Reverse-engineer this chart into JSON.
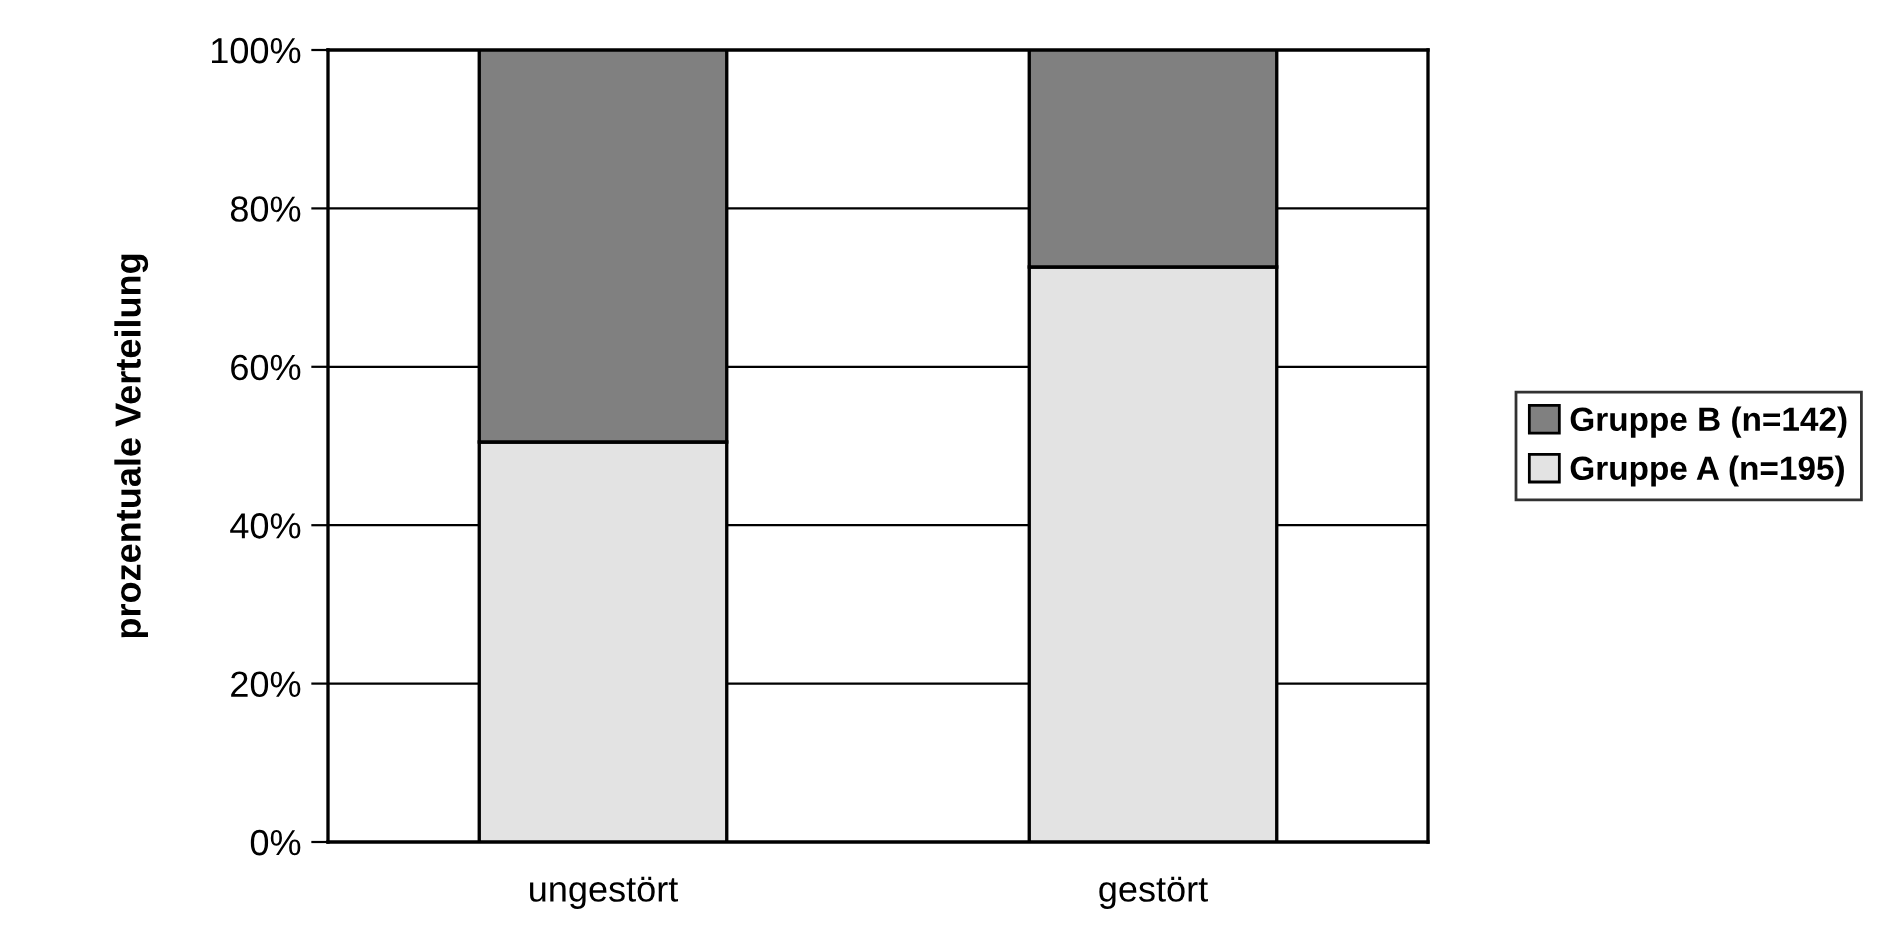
{
  "chart_data": {
    "type": "bar",
    "stacked": true,
    "ylabel": "prozentuale Verteilung",
    "categories": [
      "ungestört",
      "gestört"
    ],
    "series": [
      {
        "name": "Gruppe A (n=195)",
        "color": "#e3e3e3",
        "values": [
          50.5,
          72.6
        ]
      },
      {
        "name": "Gruppe B (n=142)",
        "color": "#808080",
        "values": [
          49.5,
          27.4
        ]
      }
    ],
    "ylim": [
      0,
      100
    ],
    "yticks": [
      {
        "value": 0,
        "label": "0%"
      },
      {
        "value": 20,
        "label": "20%"
      },
      {
        "value": 40,
        "label": "40%"
      },
      {
        "value": 60,
        "label": "60%"
      },
      {
        "value": 80,
        "label": "80%"
      },
      {
        "value": 100,
        "label": "100%"
      }
    ],
    "grid": "y",
    "legend": "right"
  }
}
